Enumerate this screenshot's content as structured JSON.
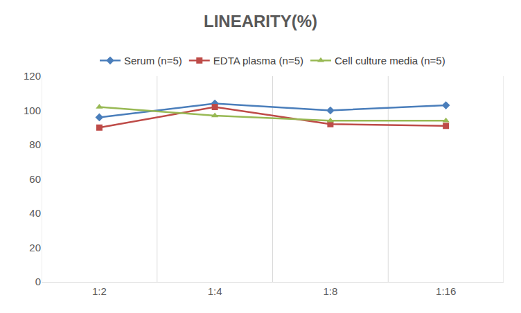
{
  "chart_data": {
    "type": "line",
    "title": "LINEARITY(%)",
    "categories": [
      "1:2",
      "1:4",
      "1:8",
      "1:16"
    ],
    "series": [
      {
        "name": "Serum (n=5)",
        "color": "#4a7ebb",
        "marker": "diamond",
        "values": [
          96,
          104,
          100,
          103
        ]
      },
      {
        "name": "EDTA plasma (n=5)",
        "color": "#be4b48",
        "marker": "square",
        "values": [
          90,
          102,
          92,
          91
        ]
      },
      {
        "name": "Cell culture media (n=5)",
        "color": "#98b954",
        "marker": "triangle-up",
        "values": [
          102,
          97,
          94,
          94
        ]
      }
    ],
    "ylim": [
      0,
      120
    ],
    "yticks": [
      0,
      20,
      40,
      60,
      80,
      100,
      120
    ],
    "grid": true,
    "legend": "top"
  }
}
